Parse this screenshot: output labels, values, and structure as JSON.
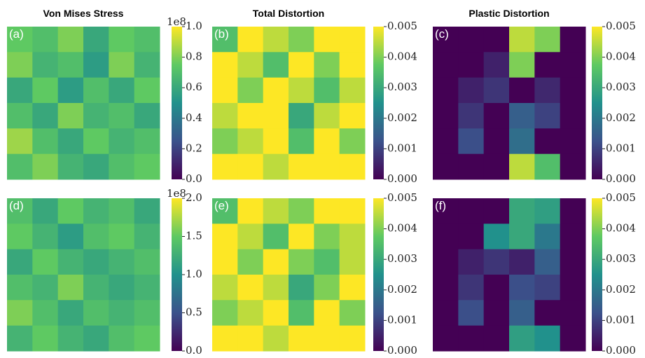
{
  "chart_data": [
    {
      "type": "heatmap",
      "title": "Von Mises Stress",
      "panel_label": "(a)",
      "colormap": "viridis",
      "offset_label": "1e8",
      "z": [
        [
          0.75,
          0.7,
          0.8,
          0.6,
          0.75,
          0.7
        ],
        [
          0.8,
          0.65,
          0.7,
          0.55,
          0.8,
          0.65
        ],
        [
          0.6,
          0.75,
          0.55,
          0.7,
          0.6,
          0.75
        ],
        [
          0.7,
          0.6,
          0.8,
          0.65,
          0.7,
          0.6
        ],
        [
          0.85,
          0.7,
          0.6,
          0.75,
          0.65,
          0.7
        ],
        [
          0.7,
          0.8,
          0.65,
          0.6,
          0.7,
          0.75
        ]
      ],
      "zlim": [
        0,
        1
      ],
      "zticks": [
        {
          "value": 0,
          "label": "0.0"
        },
        {
          "value": 0.2,
          "label": "0.2"
        },
        {
          "value": 0.4,
          "label": "0.4"
        },
        {
          "value": 0.6,
          "label": "0.6"
        },
        {
          "value": 0.8,
          "label": "0.8"
        },
        {
          "value": 1,
          "label": "1.0"
        }
      ]
    },
    {
      "type": "heatmap",
      "title": "Total Distortion",
      "panel_label": "(b)",
      "colormap": "viridis",
      "z": [
        [
          0.0035,
          0.005,
          0.0045,
          0.004,
          0.005,
          0.005
        ],
        [
          0.005,
          0.0045,
          0.0035,
          0.005,
          0.004,
          0.005
        ],
        [
          0.005,
          0.004,
          0.005,
          0.0045,
          0.0035,
          0.0045
        ],
        [
          0.0045,
          0.005,
          0.005,
          0.003,
          0.0045,
          0.005
        ],
        [
          0.004,
          0.0045,
          0.005,
          0.0035,
          0.005,
          0.004
        ],
        [
          0.005,
          0.005,
          0.0045,
          0.005,
          0.005,
          0.005
        ]
      ],
      "zlim": [
        0,
        0.005
      ],
      "zticks": [
        {
          "value": 0,
          "label": "0.000"
        },
        {
          "value": 0.001,
          "label": "0.001"
        },
        {
          "value": 0.002,
          "label": "0.002"
        },
        {
          "value": 0.003,
          "label": "0.003"
        },
        {
          "value": 0.004,
          "label": "0.004"
        },
        {
          "value": 0.005,
          "label": "0.005"
        }
      ]
    },
    {
      "type": "heatmap",
      "title": "Plastic Distortion",
      "panel_label": "(c)",
      "colormap": "viridis",
      "z": [
        [
          0,
          0,
          0,
          0.0045,
          0.004,
          0
        ],
        [
          0,
          0,
          0.0005,
          0.004,
          0,
          0
        ],
        [
          0,
          0.0005,
          0.0008,
          0,
          0.0006,
          0
        ],
        [
          0,
          0.0008,
          0,
          0.0015,
          0.001,
          0
        ],
        [
          0,
          0.0012,
          0,
          0.0018,
          0,
          0
        ],
        [
          0,
          0,
          0,
          0.0045,
          0.0035,
          0
        ]
      ],
      "zlim": [
        0,
        0.005
      ],
      "zticks": [
        {
          "value": 0,
          "label": "0.000"
        },
        {
          "value": 0.001,
          "label": "0.001"
        },
        {
          "value": 0.002,
          "label": "0.002"
        },
        {
          "value": 0.003,
          "label": "0.003"
        },
        {
          "value": 0.004,
          "label": "0.004"
        },
        {
          "value": 0.005,
          "label": "0.005"
        }
      ]
    },
    {
      "type": "heatmap",
      "panel_label": "(d)",
      "colormap": "viridis",
      "offset_label": "1e8",
      "z": [
        [
          1.4,
          1.2,
          1.5,
          1.3,
          1.4,
          1.2
        ],
        [
          1.5,
          1.3,
          1.1,
          1.4,
          1.5,
          1.3
        ],
        [
          1.2,
          1.5,
          1.3,
          1.2,
          1.3,
          1.4
        ],
        [
          1.4,
          1.3,
          1.6,
          1.3,
          1.2,
          1.3
        ],
        [
          1.6,
          1.4,
          1.2,
          1.4,
          1.3,
          1.4
        ],
        [
          1.3,
          1.5,
          1.3,
          1.2,
          1.4,
          1.5
        ]
      ],
      "zlim": [
        0,
        2
      ],
      "zticks": [
        {
          "value": 0,
          "label": "0.0"
        },
        {
          "value": 0.5,
          "label": "0.5"
        },
        {
          "value": 1,
          "label": "1.0"
        },
        {
          "value": 1.5,
          "label": "1.5"
        },
        {
          "value": 2,
          "label": "2.0"
        }
      ]
    },
    {
      "type": "heatmap",
      "panel_label": "(e)",
      "colormap": "viridis",
      "z": [
        [
          0.0035,
          0.005,
          0.0045,
          0.004,
          0.005,
          0.005
        ],
        [
          0.005,
          0.0045,
          0.0035,
          0.005,
          0.004,
          0.0045
        ],
        [
          0.005,
          0.004,
          0.005,
          0.004,
          0.0035,
          0.0045
        ],
        [
          0.0045,
          0.005,
          0.0045,
          0.003,
          0.004,
          0.005
        ],
        [
          0.004,
          0.0045,
          0.005,
          0.0035,
          0.005,
          0.004
        ],
        [
          0.005,
          0.005,
          0.0045,
          0.005,
          0.005,
          0.005
        ]
      ],
      "zlim": [
        0,
        0.005
      ],
      "zticks": [
        {
          "value": 0,
          "label": "0.000"
        },
        {
          "value": 0.001,
          "label": "0.001"
        },
        {
          "value": 0.002,
          "label": "0.002"
        },
        {
          "value": 0.003,
          "label": "0.003"
        },
        {
          "value": 0.004,
          "label": "0.004"
        },
        {
          "value": 0.005,
          "label": "0.005"
        }
      ]
    },
    {
      "type": "heatmap",
      "panel_label": "(f)",
      "colormap": "viridis",
      "z": [
        [
          0,
          0,
          0,
          0.003,
          0.0028,
          0
        ],
        [
          0,
          0,
          0.0025,
          0.003,
          0.002,
          0
        ],
        [
          0,
          0.0005,
          0.0008,
          0.0005,
          0.0015,
          0
        ],
        [
          0,
          0.0008,
          0,
          0.0012,
          0.001,
          0
        ],
        [
          0,
          0.0012,
          0,
          0.0015,
          0,
          0
        ],
        [
          0,
          0,
          0,
          0.0028,
          0.0025,
          0
        ]
      ],
      "zlim": [
        0,
        0.005
      ],
      "zticks": [
        {
          "value": 0,
          "label": "0.000"
        },
        {
          "value": 0.001,
          "label": "0.001"
        },
        {
          "value": 0.002,
          "label": "0.002"
        },
        {
          "value": 0.003,
          "label": "0.003"
        },
        {
          "value": 0.004,
          "label": "0.004"
        },
        {
          "value": 0.005,
          "label": "0.005"
        }
      ]
    }
  ]
}
